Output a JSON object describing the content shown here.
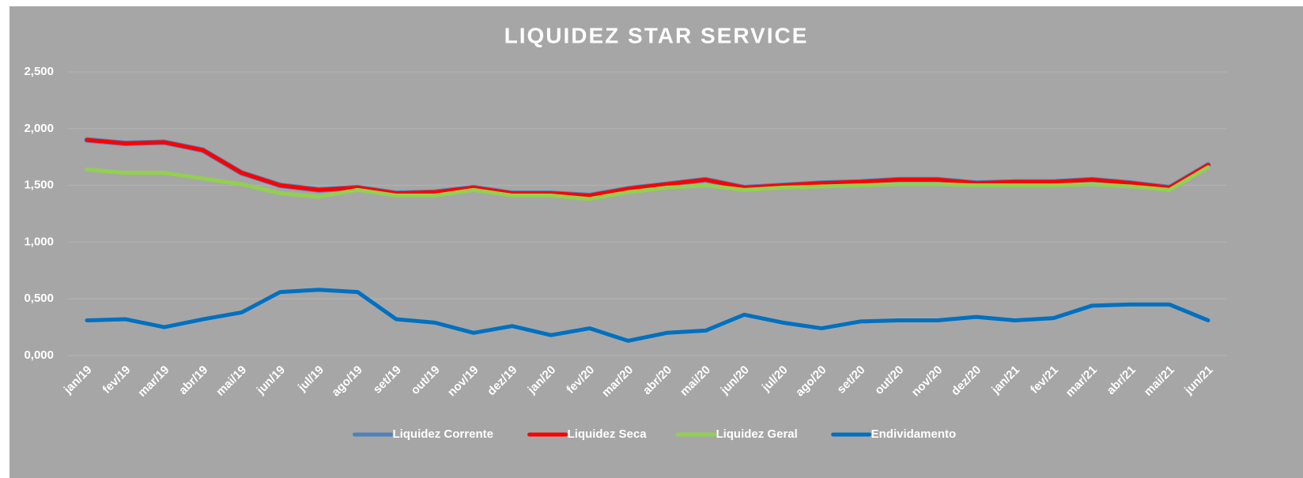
{
  "chart_data": {
    "type": "line",
    "title": "LIQUIDEZ STAR SERVICE",
    "categories": [
      "jan/19",
      "fev/19",
      "mar/19",
      "abr/19",
      "mai/19",
      "jun/19",
      "jul/19",
      "ago/19",
      "set/19",
      "out/19",
      "nov/19",
      "dez/19",
      "jan/20",
      "fev/20",
      "mar/20",
      "abr/20",
      "mai/20",
      "jun/20",
      "jul/20",
      "ago/20",
      "set/20",
      "out/20",
      "nov/20",
      "dez/20",
      "jan/21",
      "fev/21",
      "mar/21",
      "abr/21",
      "mai/21",
      "jun/21"
    ],
    "series": [
      {
        "name": "Liquidez Corrente",
        "color": "#4f81bd",
        "values": [
          1.9,
          1.87,
          1.88,
          1.81,
          1.61,
          1.5,
          1.46,
          1.48,
          1.43,
          1.44,
          1.48,
          1.43,
          1.43,
          1.41,
          1.47,
          1.51,
          1.55,
          1.48,
          1.5,
          1.52,
          1.53,
          1.55,
          1.55,
          1.52,
          1.53,
          1.53,
          1.55,
          1.52,
          1.48,
          1.68
        ]
      },
      {
        "name": "Liquidez Seca",
        "color": "#ff0000",
        "values": [
          1.9,
          1.87,
          1.88,
          1.81,
          1.61,
          1.5,
          1.46,
          1.48,
          1.43,
          1.44,
          1.48,
          1.43,
          1.43,
          1.41,
          1.47,
          1.51,
          1.55,
          1.48,
          1.5,
          1.52,
          1.53,
          1.55,
          1.55,
          1.52,
          1.53,
          1.53,
          1.55,
          1.52,
          1.48,
          1.68
        ]
      },
      {
        "name": "Liquidez Geral",
        "color": "#92d050",
        "values": [
          1.64,
          1.61,
          1.61,
          1.56,
          1.51,
          1.43,
          1.4,
          1.46,
          1.41,
          1.41,
          1.46,
          1.41,
          1.41,
          1.38,
          1.44,
          1.48,
          1.5,
          1.46,
          1.48,
          1.49,
          1.5,
          1.51,
          1.51,
          1.5,
          1.5,
          1.5,
          1.51,
          1.49,
          1.46,
          1.66
        ]
      },
      {
        "name": "Endividamento",
        "color": "#0070c0",
        "values": [
          0.31,
          0.32,
          0.25,
          0.32,
          0.38,
          0.56,
          0.58,
          0.56,
          0.32,
          0.29,
          0.2,
          0.26,
          0.18,
          0.24,
          0.13,
          0.2,
          0.22,
          0.36,
          0.29,
          0.24,
          0.3,
          0.31,
          0.31,
          0.34,
          0.31,
          0.33,
          0.44,
          0.45,
          0.45,
          0.31
        ]
      }
    ],
    "ylim": [
      0,
      2.5
    ],
    "yticks": [
      {
        "value": 0,
        "label": "0,000"
      },
      {
        "value": 0.5,
        "label": "0,500"
      },
      {
        "value": 1,
        "label": "1,000"
      },
      {
        "value": 1.5,
        "label": "1,500"
      },
      {
        "value": 2,
        "label": "2,000"
      },
      {
        "value": 2.5,
        "label": "2,500"
      }
    ],
    "grid": true,
    "legend": "bottom"
  }
}
